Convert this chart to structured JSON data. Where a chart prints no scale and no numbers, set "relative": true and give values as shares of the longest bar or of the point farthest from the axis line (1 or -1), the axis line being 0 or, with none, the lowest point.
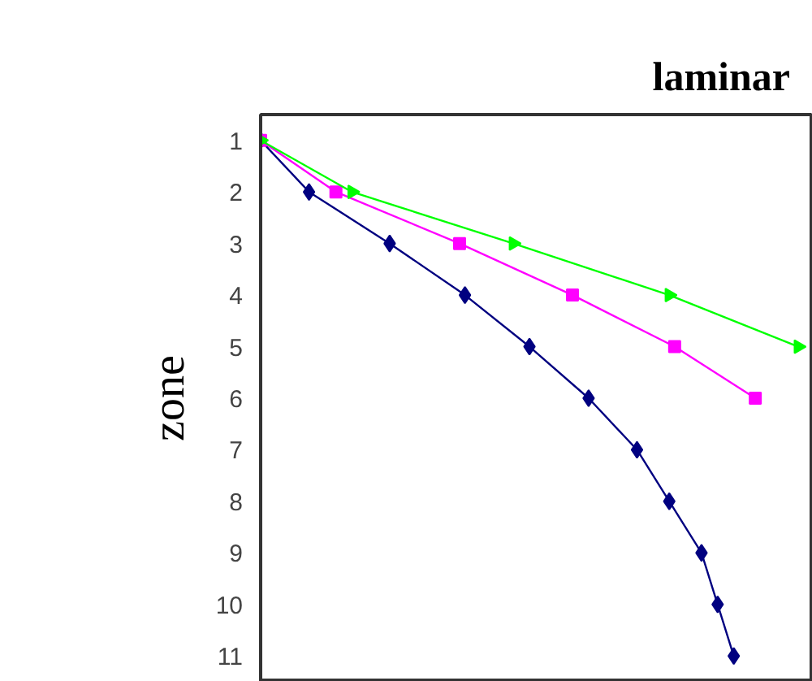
{
  "chart_data": {
    "type": "line",
    "title": "laminar",
    "ylabel": "zone",
    "orientation": "horizontal",
    "relative": true,
    "grid": false,
    "categories": [
      "1",
      "2",
      "3",
      "4",
      "5",
      "6",
      "7",
      "8",
      "9",
      "10",
      "11"
    ],
    "series": [
      {
        "color": "#000080",
        "marker": "diamond",
        "values": [
          0,
          0.09,
          0.24,
          0.38,
          0.5,
          0.61,
          0.7,
          0.76,
          0.82,
          0.85,
          0.88
        ]
      },
      {
        "color": "#ff00ff",
        "marker": "square",
        "values": [
          0,
          0.14,
          0.37,
          0.58,
          0.77,
          0.92,
          null,
          null,
          null,
          null,
          null
        ]
      },
      {
        "color": "#00ff00",
        "marker": "triangle",
        "values": [
          0,
          0.17,
          0.47,
          0.76,
          1.0,
          null,
          null,
          null,
          null,
          null,
          null
        ]
      }
    ]
  }
}
